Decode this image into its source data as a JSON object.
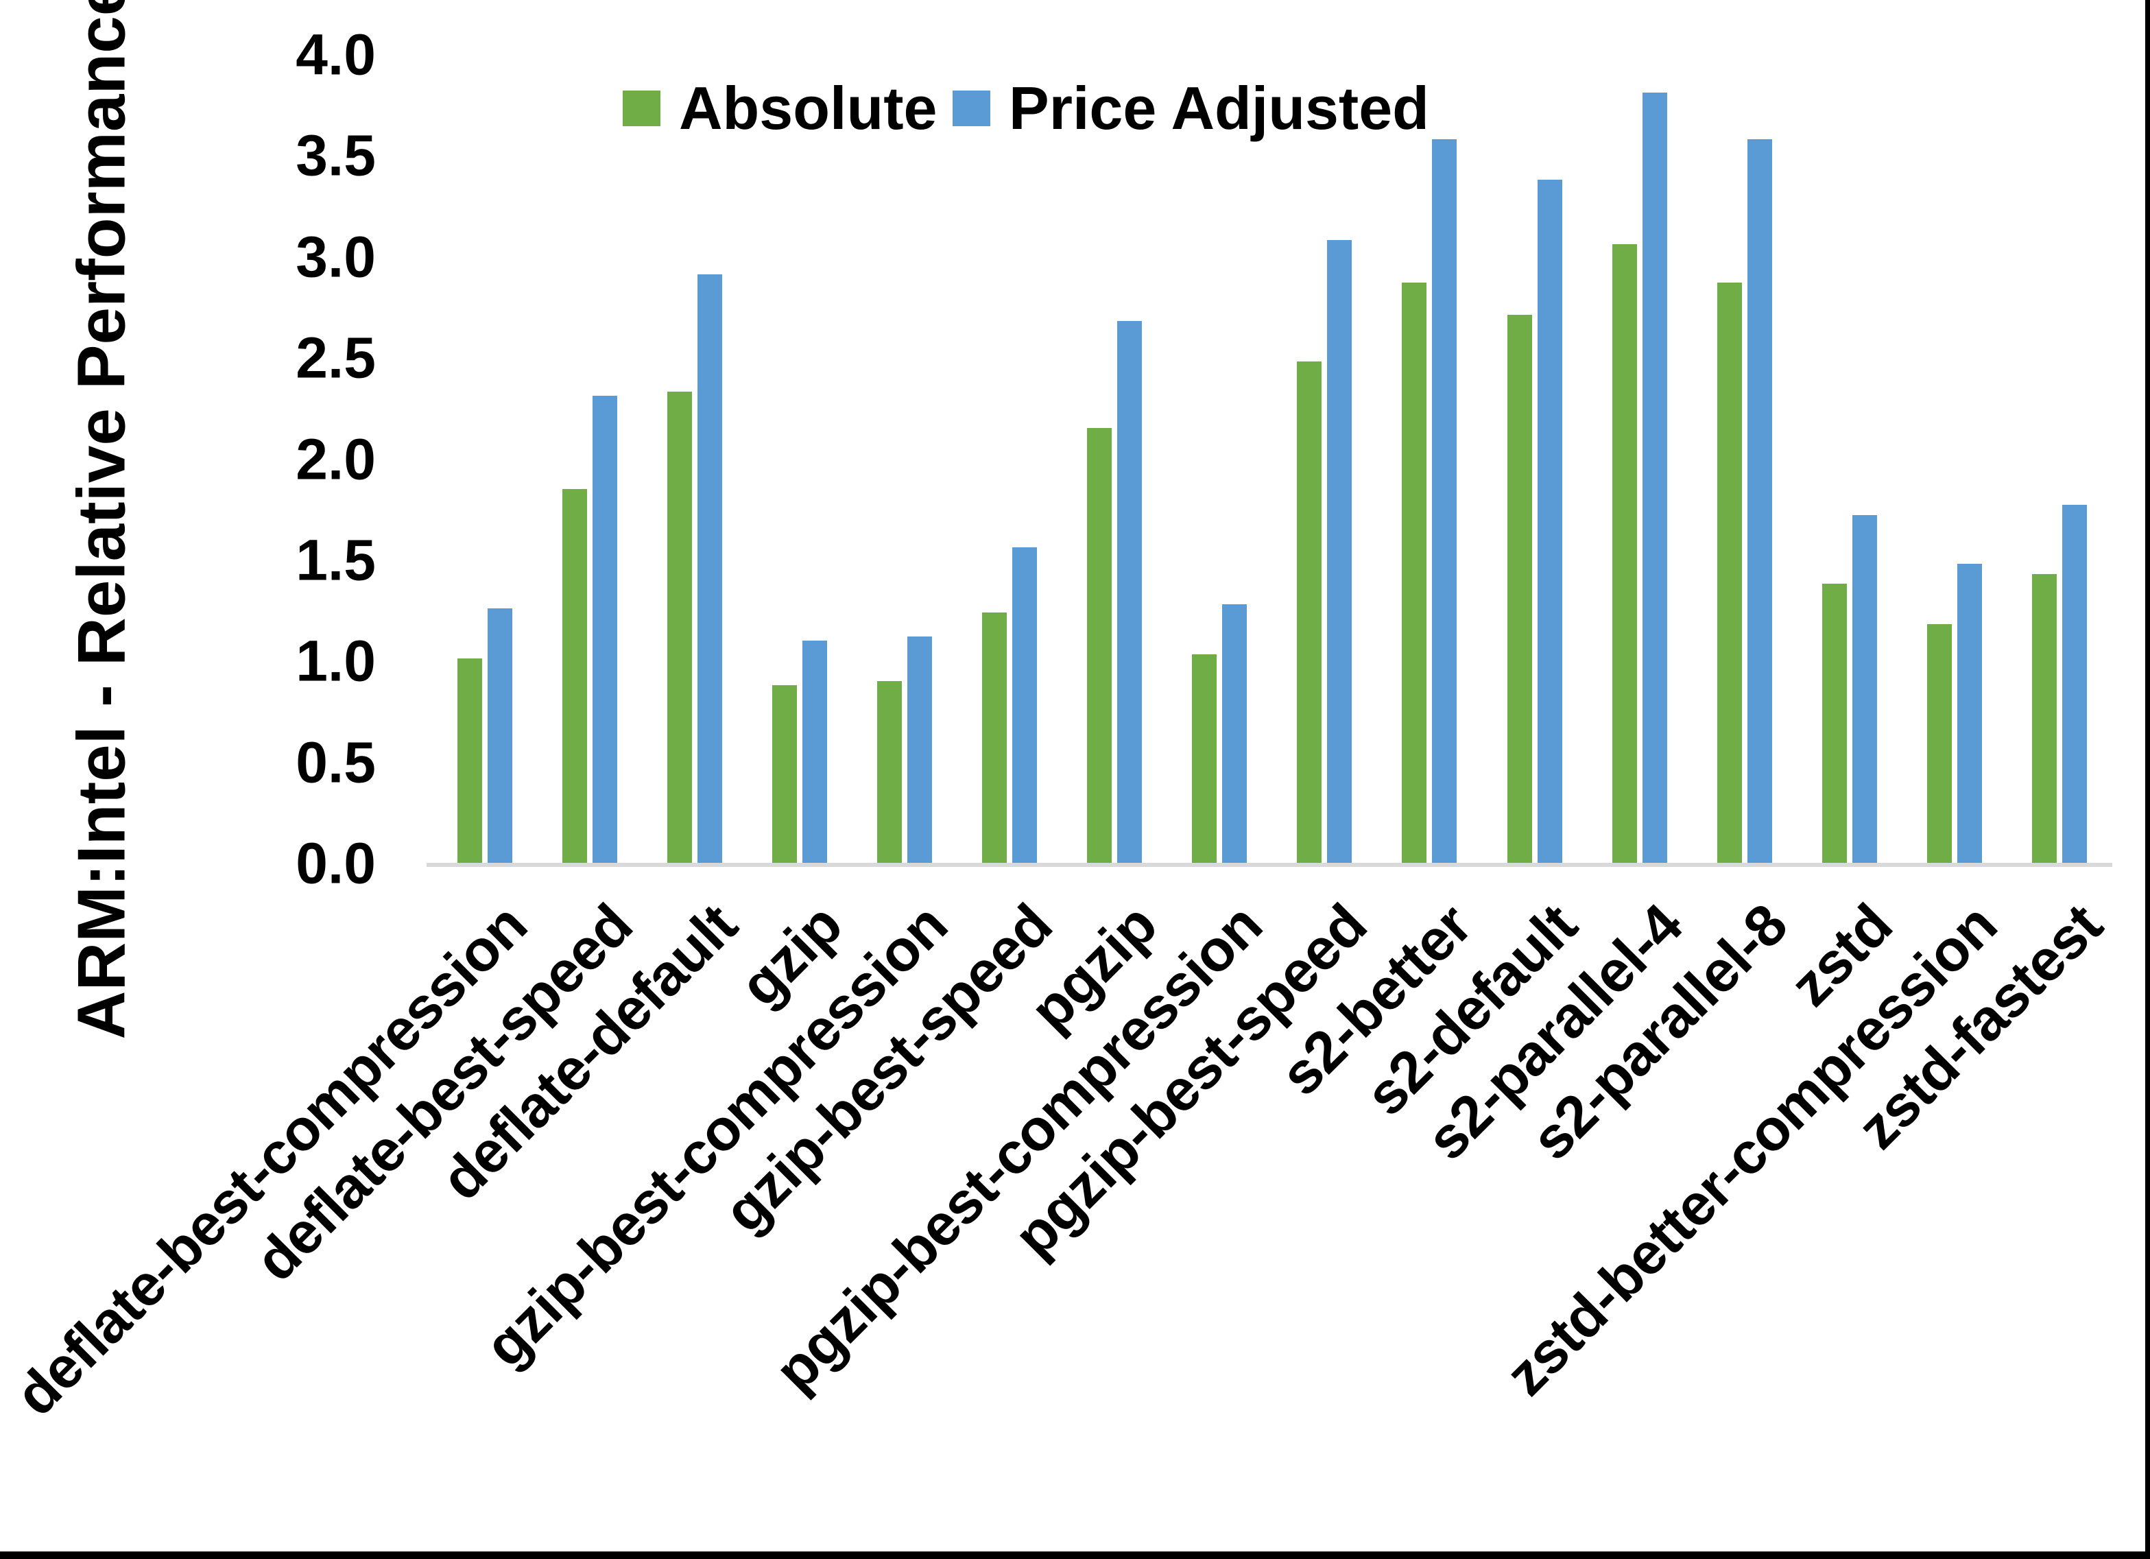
{
  "chart_data": {
    "type": "bar",
    "title": "",
    "ylabel": "ARM:Intel - Relative Performance",
    "xlabel": "",
    "ylim": [
      0.0,
      4.0
    ],
    "ytick_step": 0.5,
    "ytick_labels": [
      "0.0",
      "0.5",
      "1.0",
      "1.5",
      "2.0",
      "2.5",
      "3.0",
      "3.5",
      "4.0"
    ],
    "grid": false,
    "legend_position": "top-center-inside",
    "categories": [
      "deflate-best-compression",
      "deflate-best-speed",
      "deflate-default",
      "gzip",
      "gzip-best-compression",
      "gzip-best-speed",
      "pgzip",
      "pgzip-best-compression",
      "pgzip-best-speed",
      "s2-better",
      "s2-default",
      "s2-parallel-4",
      "s2-parallel-8",
      "zstd",
      "zstd-better-compression",
      "zstd-fastest"
    ],
    "series": [
      {
        "name": "Absolute",
        "color": "#70AD47",
        "values": [
          1.01,
          1.85,
          2.33,
          0.88,
          0.9,
          1.24,
          2.15,
          1.03,
          2.48,
          2.87,
          2.71,
          3.06,
          2.87,
          1.38,
          1.18,
          1.43
        ]
      },
      {
        "name": "Price Adjusted",
        "color": "#5B9BD5",
        "values": [
          1.26,
          2.31,
          2.91,
          1.1,
          1.12,
          1.56,
          2.68,
          1.28,
          3.08,
          3.58,
          3.38,
          3.81,
          3.58,
          1.72,
          1.48,
          1.77
        ]
      }
    ],
    "axis_line_color": "#D9D9D9",
    "frame_border_color": "#000000"
  }
}
